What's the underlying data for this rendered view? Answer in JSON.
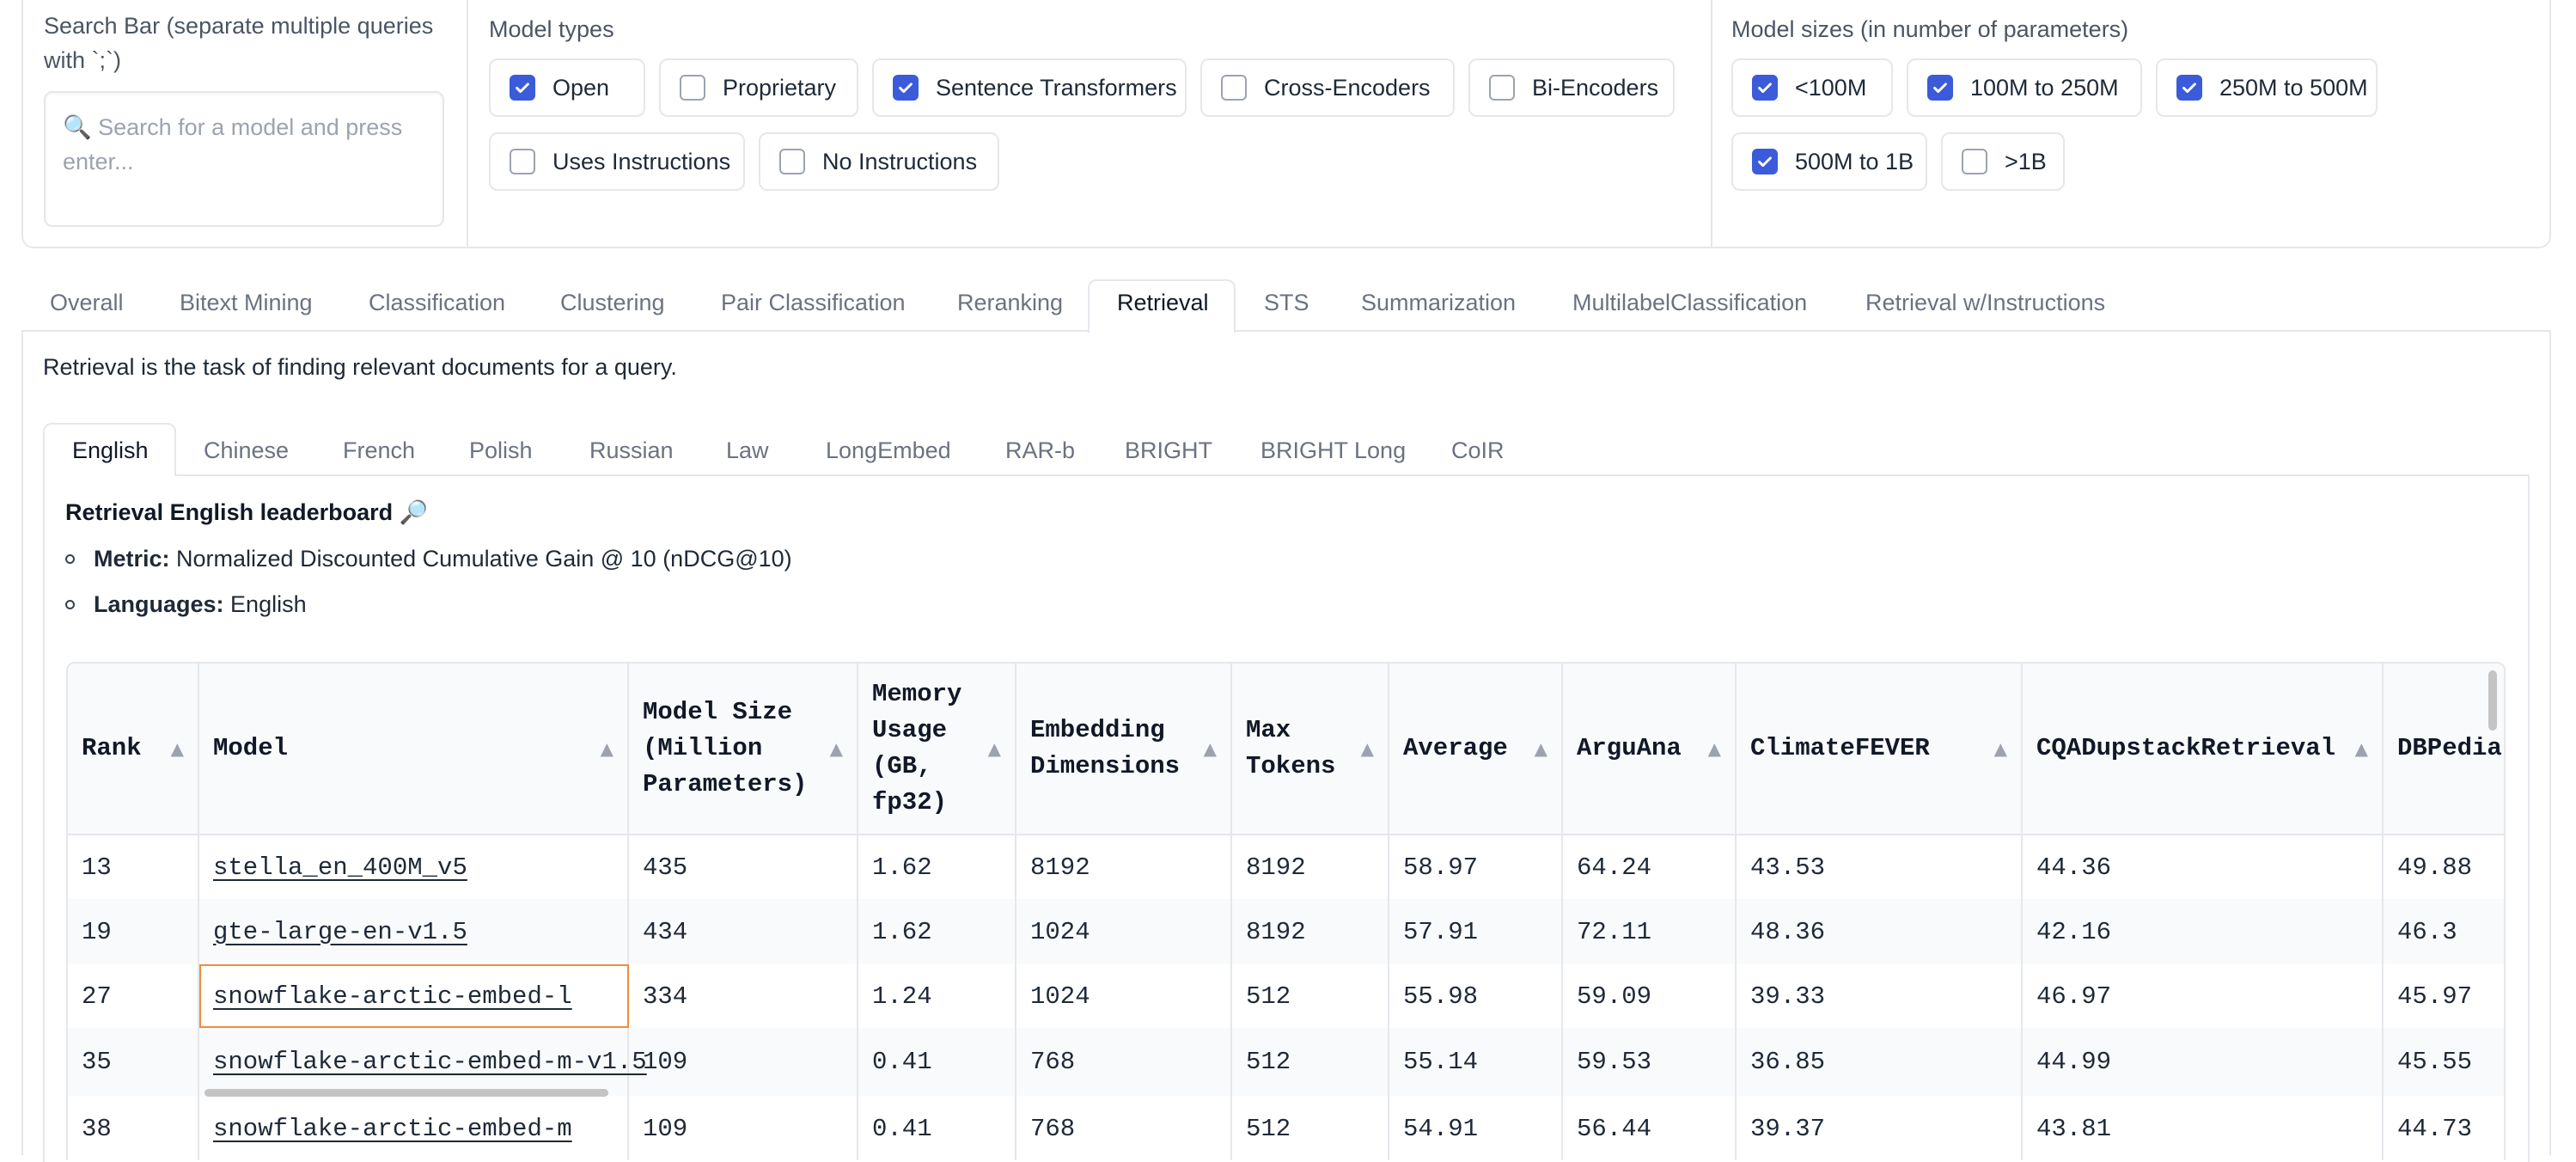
{
  "filters": {
    "search": {
      "label": "Search Bar (separate multiple queries with `;`)",
      "placeholder": "🔍 Search for a model and press enter...",
      "value": ""
    },
    "model_types": {
      "label": "Model types",
      "options": [
        {
          "label": "Open",
          "checked": true
        },
        {
          "label": "Proprietary",
          "checked": false
        },
        {
          "label": "Sentence Transformers",
          "checked": true
        },
        {
          "label": "Cross-Encoders",
          "checked": false
        },
        {
          "label": "Bi-Encoders",
          "checked": false
        },
        {
          "label": "Uses Instructions",
          "checked": false
        },
        {
          "label": "No Instructions",
          "checked": false
        }
      ]
    },
    "model_sizes": {
      "label": "Model sizes (in number of parameters)",
      "options": [
        {
          "label": "<100M",
          "checked": true
        },
        {
          "label": "100M to 250M",
          "checked": true
        },
        {
          "label": "250M to 500M",
          "checked": true
        },
        {
          "label": "500M to 1B",
          "checked": true
        },
        {
          "label": ">1B",
          "checked": false
        }
      ]
    }
  },
  "main_tabs": {
    "items": [
      "Overall",
      "Bitext Mining",
      "Classification",
      "Clustering",
      "Pair Classification",
      "Reranking",
      "Retrieval",
      "STS",
      "Summarization",
      "MultilabelClassification",
      "Retrieval w/Instructions"
    ],
    "active": "Retrieval"
  },
  "task_description": "Retrieval is the task of finding relevant documents for a query.",
  "sub_tabs": {
    "items": [
      "English",
      "Chinese",
      "French",
      "Polish",
      "Russian",
      "Law",
      "LongEmbed",
      "RAR-b",
      "BRIGHT",
      "BRIGHT Long",
      "CoIR"
    ],
    "active": "English"
  },
  "leaderboard": {
    "title": "Retrieval English leaderboard 🔎",
    "metric_label": "Metric:",
    "metric_value": "Normalized Discounted Cumulative Gain @ 10 (nDCG@10)",
    "languages_label": "Languages:",
    "languages_value": "English"
  },
  "table": {
    "sort_icon": "sort-up-icon",
    "headers": [
      "Rank",
      "Model",
      "Model Size (Million Parameters)",
      "Memory Usage (GB, fp32)",
      "Embedding Dimensions",
      "Max Tokens",
      "Average",
      "ArguAna",
      "ClimateFEVER",
      "CQADupstackRetrieval",
      "DBPedia"
    ],
    "rows": [
      [
        "13",
        "stella_en_400M_v5",
        "435",
        "1.62",
        "8192",
        "8192",
        "58.97",
        "64.24",
        "43.53",
        "44.36",
        "49.88"
      ],
      [
        "19",
        "gte-large-en-v1.5",
        "434",
        "1.62",
        "1024",
        "8192",
        "57.91",
        "72.11",
        "48.36",
        "42.16",
        "46.3"
      ],
      [
        "27",
        "snowflake-arctic-embed-l",
        "334",
        "1.24",
        "1024",
        "512",
        "55.98",
        "59.09",
        "39.33",
        "46.97",
        "45.97"
      ],
      [
        "35",
        "snowflake-arctic-embed-m-v1.5",
        "109",
        "0.41",
        "768",
        "512",
        "55.14",
        "59.53",
        "36.85",
        "44.99",
        "45.55"
      ],
      [
        "38",
        "snowflake-arctic-embed-m",
        "109",
        "0.41",
        "768",
        "512",
        "54.91",
        "56.44",
        "39.37",
        "43.81",
        "44.73"
      ]
    ],
    "selected": {
      "row": 2,
      "col": 1
    }
  }
}
